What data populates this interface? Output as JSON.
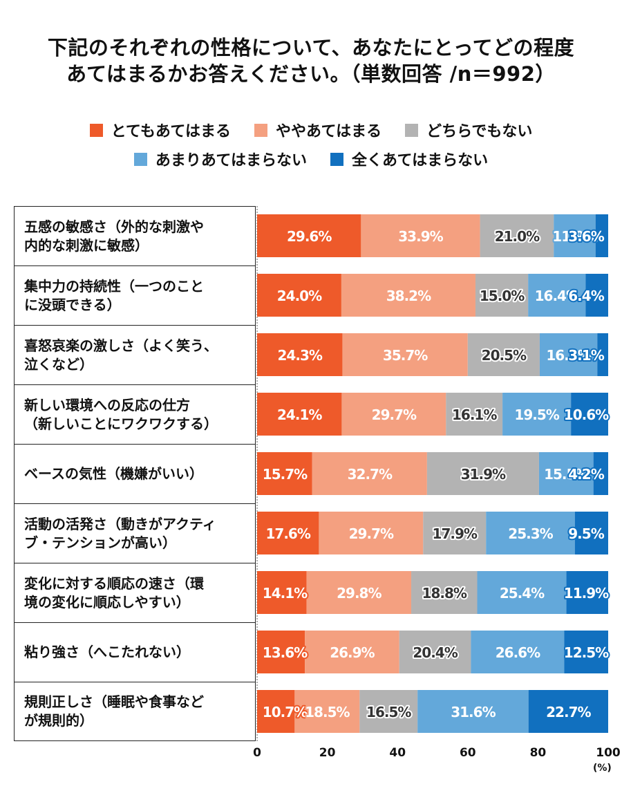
{
  "chart_data": {
    "type": "bar",
    "orientation": "horizontal",
    "stacked": true,
    "title_lines": [
      "下記のそれぞれの性格について、あなたにとってどの程度",
      "あてはまるかお答えください。（単数回答 /n＝992）"
    ],
    "categories": [
      [
        "五感の敏感さ（外的な刺激や",
        "内的な刺激に敏感）"
      ],
      [
        "集中力の持続性（一つのこと",
        "に没頭できる）"
      ],
      [
        "喜怒哀楽の激しさ（よく笑う、",
        "泣くなど）"
      ],
      [
        "新しい環境への反応の仕方",
        "（新しいことにワクワクする）"
      ],
      [
        "ベースの気性（機嫌がいい）"
      ],
      [
        "活動の活発さ（動きがアクティ",
        "ブ・テンションが高い）"
      ],
      [
        "変化に対する順応の速さ（環",
        "境の変化に順応しやすい）"
      ],
      [
        "粘り強さ（へこたれない）"
      ],
      [
        "規則正しさ（睡眠や食事など",
        "が規則的）"
      ]
    ],
    "series": [
      {
        "name": "とてもあてはまる",
        "color": "#ee5a2a",
        "values": [
          29.6,
          24.0,
          24.3,
          24.1,
          15.7,
          17.6,
          14.1,
          13.6,
          10.7
        ]
      },
      {
        "name": "ややあてはまる",
        "color": "#f4a080",
        "values": [
          33.9,
          38.2,
          35.7,
          29.7,
          32.7,
          29.7,
          29.8,
          26.9,
          18.5
        ]
      },
      {
        "name": "どちらでもない",
        "color": "#b3b3b3",
        "values": [
          21.0,
          15.0,
          20.5,
          16.1,
          31.9,
          17.9,
          18.8,
          20.4,
          16.5
        ]
      },
      {
        "name": "あまりあてはまらない",
        "color": "#63a8da",
        "values": [
          11.9,
          16.4,
          16.4,
          19.5,
          15.5,
          25.3,
          25.4,
          26.6,
          31.6
        ]
      },
      {
        "name": "全くあてはまらない",
        "color": "#1170bf",
        "values": [
          3.6,
          6.4,
          3.1,
          10.6,
          4.2,
          9.5,
          11.9,
          12.5,
          22.7
        ]
      }
    ],
    "value_labels": [
      [
        "29.6%",
        "33.9%",
        "21.0%",
        "11.9%",
        "3.6%"
      ],
      [
        "24.0%",
        "38.2%",
        "15.0%",
        "16.4%",
        "6.4%"
      ],
      [
        "24.3%",
        "35.7%",
        "20.5%",
        "16.4%",
        "3.1%"
      ],
      [
        "24.1%",
        "29.7%",
        "16.1%",
        "19.5%",
        "10.6%"
      ],
      [
        "15.7%",
        "32.7%",
        "31.9%",
        "15.5%",
        "4.2%"
      ],
      [
        "17.6%",
        "29.7%",
        "17.9%",
        "25.3%",
        "9.5%"
      ],
      [
        "14.1%",
        "29.8%",
        "18.8%",
        "25.4%",
        "11.9%"
      ],
      [
        "13.6%",
        "26.9%",
        "20.4%",
        "26.6%",
        "12.5%"
      ],
      [
        "10.7%",
        "18.5%",
        "16.5%",
        "31.6%",
        "22.7%"
      ]
    ],
    "xlim": [
      0,
      100
    ],
    "x_ticks": [
      "0",
      "20",
      "40",
      "60",
      "80",
      "100"
    ],
    "x_unit": "(%)",
    "legend_position": "top",
    "grid": false
  }
}
